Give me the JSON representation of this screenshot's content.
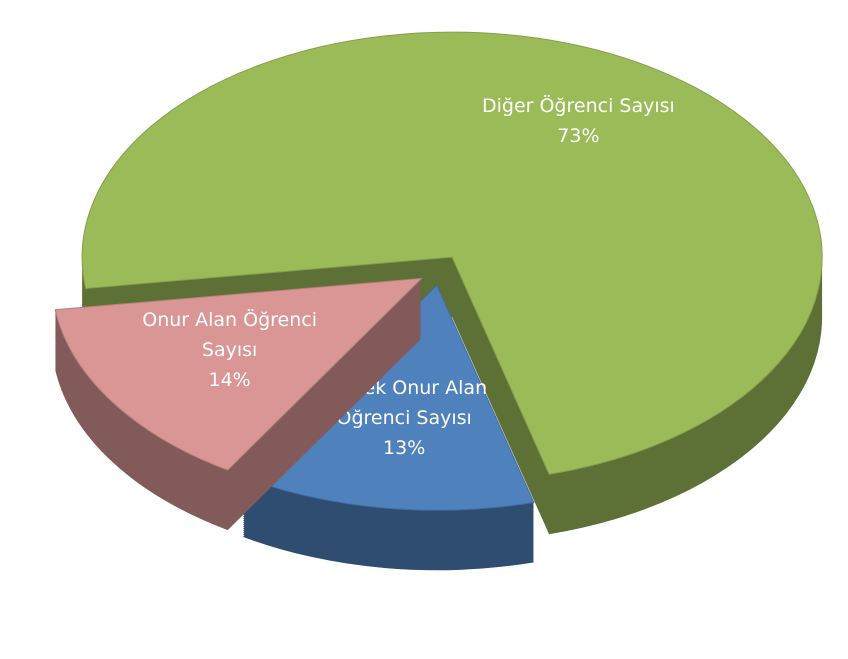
{
  "chart_data": {
    "type": "pie",
    "categories": [
      "Diğer Öğrenci Sayısı",
      "Yüksek Onur Alan Öğrenci Sayısı",
      "Onur Alan Öğrenci Sayısı"
    ],
    "values": [
      73,
      13,
      14
    ],
    "value_labels": [
      "73%",
      "13%",
      "14%"
    ],
    "colors": [
      "#9bbb59",
      "#4f81bd",
      "#d99694"
    ]
  }
}
